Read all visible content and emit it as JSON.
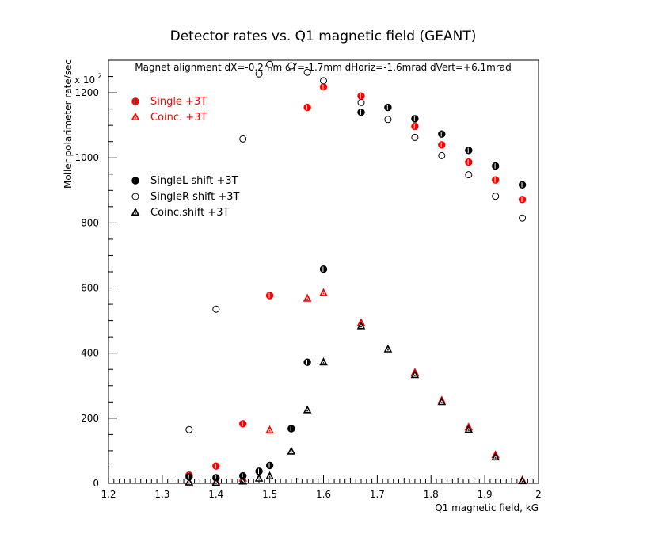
{
  "chart_data": {
    "type": "scatter",
    "title": "Detector rates vs. Q1 magnetic field (GEANT)",
    "subtitle": "Magnet alignment dX=-0.2mm dY=-1.7mm dHoriz=-1.6mrad dVert=+6.1mrad",
    "xlabel": "Q1 magnetic field, kG",
    "ylabel": "Moller polarimeter rate/sec",
    "y_multiplier": "x 10",
    "y_multiplier_exp": "2",
    "xlim": [
      1.2,
      2.0
    ],
    "ylim": [
      0,
      1300
    ],
    "x_ticks": [
      1.2,
      1.3,
      1.4,
      1.5,
      1.6,
      1.7,
      1.8,
      1.9,
      2.0
    ],
    "x_tick_labels": [
      "1.2",
      "1.3",
      "1.4",
      "1.5",
      "1.6",
      "1.7",
      "1.8",
      "1.9",
      "2"
    ],
    "y_ticks": [
      0,
      200,
      400,
      600,
      800,
      1000,
      1200
    ],
    "y_tick_labels": [
      "0",
      "200",
      "400",
      "600",
      "800",
      "1000",
      "1200"
    ],
    "legend_placement": "top-left",
    "series": [
      {
        "name": "Single +3T",
        "color": "#ff0000",
        "marker": "half-filled-circle",
        "legend_group": 1,
        "x": [
          1.35,
          1.4,
          1.45,
          1.5,
          1.57,
          1.6,
          1.67,
          1.77,
          1.82,
          1.87,
          1.92,
          1.97
        ],
        "y": [
          25,
          53,
          183,
          577,
          1155,
          1218,
          1190,
          1097,
          1040,
          987,
          932,
          872
        ]
      },
      {
        "name": "Coinc. +3T",
        "color": "#ff0000",
        "marker": "triangle",
        "legend_group": 1,
        "x": [
          1.35,
          1.4,
          1.45,
          1.5,
          1.57,
          1.6,
          1.67,
          1.77,
          1.82,
          1.87,
          1.92,
          1.97
        ],
        "y": [
          3,
          5,
          15,
          163,
          568,
          585,
          493,
          340,
          255,
          172,
          87,
          10
        ]
      },
      {
        "name": "SingleL shift +3T",
        "color": "#000000",
        "marker": "half-filled-circle",
        "legend_group": 2,
        "x": [
          1.35,
          1.4,
          1.45,
          1.48,
          1.5,
          1.54,
          1.57,
          1.6,
          1.67,
          1.72,
          1.77,
          1.82,
          1.87,
          1.92,
          1.97
        ],
        "y": [
          20,
          17,
          23,
          37,
          55,
          168,
          372,
          658,
          1140,
          1155,
          1120,
          1073,
          1023,
          975,
          917
        ]
      },
      {
        "name": "SingleR shift +3T",
        "color": "#000000",
        "marker": "open-circle",
        "legend_group": 2,
        "x": [
          1.35,
          1.4,
          1.45,
          1.48,
          1.5,
          1.54,
          1.57,
          1.6,
          1.67,
          1.72,
          1.77,
          1.82,
          1.87,
          1.92,
          1.97
        ],
        "y": [
          165,
          535,
          1058,
          1258,
          1287,
          1283,
          1263,
          1237,
          1170,
          1118,
          1063,
          1007,
          948,
          882,
          815
        ]
      },
      {
        "name": "Coinc.shift +3T",
        "color": "#000000",
        "marker": "triangle",
        "legend_group": 2,
        "x": [
          1.35,
          1.4,
          1.45,
          1.48,
          1.5,
          1.54,
          1.57,
          1.6,
          1.67,
          1.72,
          1.77,
          1.82,
          1.87,
          1.92,
          1.97
        ],
        "y": [
          3,
          2,
          6,
          15,
          22,
          98,
          225,
          372,
          483,
          412,
          333,
          250,
          165,
          80,
          7
        ]
      }
    ]
  }
}
